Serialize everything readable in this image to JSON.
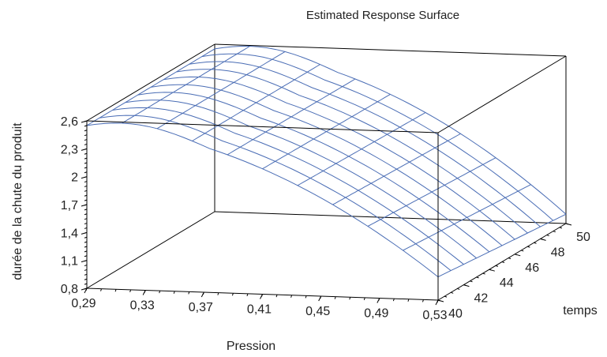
{
  "chart_data": {
    "type": "surface",
    "title": "Estimated Response Surface",
    "x_axis": {
      "label": "Pression",
      "ticks": [
        "0,29",
        "0,33",
        "0,37",
        "0,41",
        "0,45",
        "0,49",
        "0,53"
      ],
      "range": [
        0.29,
        0.53
      ]
    },
    "y_axis": {
      "label": "temps",
      "ticks": [
        "40",
        "42",
        "44",
        "46",
        "48",
        "50"
      ],
      "range": [
        40,
        50
      ]
    },
    "z_axis": {
      "label": "durée de la chute du produit",
      "ticks": [
        "0,8",
        "1,1",
        "1,4",
        "1,7",
        "2",
        "2,3",
        "2,6"
      ],
      "range": [
        0.8,
        2.6
      ]
    },
    "surface_model": {
      "description": "approximate fitted response z(pression, temps)",
      "z_at_p_min_t_min": 2.55,
      "z_at_p_max_t_min": 1.05,
      "z_at_p_max_t_max": 0.9,
      "z_at_p_min_t_max": 2.55,
      "peak_near_pression": 0.32
    },
    "grid_lines": 10,
    "colors": {
      "surface": "#4a6db5",
      "box": "#000000",
      "text": "#222222"
    }
  }
}
